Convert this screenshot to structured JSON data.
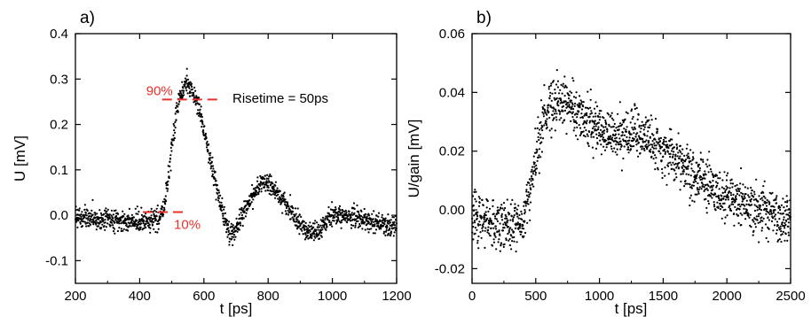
{
  "chart_data": [
    {
      "panel_label": "a)",
      "type": "scatter",
      "xlabel": "t [ps]",
      "ylabel": "U [mV]",
      "xlim": [
        200,
        1200
      ],
      "ylim": [
        -0.15,
        0.4
      ],
      "xticks": [
        200,
        400,
        600,
        800,
        1000,
        1200
      ],
      "yticks": [
        -0.1,
        0.0,
        0.1,
        0.2,
        0.3,
        0.4
      ],
      "xtick_labels": [
        "200",
        "400",
        "600",
        "800",
        "1000",
        "1200"
      ],
      "ytick_labels": [
        "-0.1",
        "0.0",
        "0.1",
        "0.2",
        "0.3",
        "0.4"
      ],
      "marker_color": "#000000",
      "trend": {
        "x": [
          200,
          300,
          400,
          460,
          480,
          500,
          520,
          540,
          560,
          580,
          600,
          620,
          640,
          660,
          680,
          700,
          720,
          740,
          760,
          780,
          800,
          820,
          840,
          860,
          880,
          900,
          920,
          940,
          960,
          980,
          1000,
          1050,
          1100,
          1150,
          1200
        ],
        "y": [
          -0.005,
          -0.01,
          -0.015,
          -0.01,
          0.03,
          0.15,
          0.25,
          0.29,
          0.285,
          0.25,
          0.19,
          0.12,
          0.06,
          0.0,
          -0.04,
          -0.03,
          0.0,
          0.03,
          0.055,
          0.07,
          0.07,
          0.06,
          0.04,
          0.02,
          0.0,
          -0.02,
          -0.035,
          -0.04,
          -0.035,
          -0.015,
          0.0,
          0.0,
          -0.01,
          -0.02,
          -0.025
        ]
      },
      "reference_lines": [
        {
          "label": "90%",
          "y": 0.255,
          "x_range": [
            470,
            645
          ],
          "color": "#e8312a"
        },
        {
          "label": "10%",
          "y": 0.007,
          "x_range": [
            410,
            545
          ],
          "color": "#e8312a"
        }
      ],
      "annotations": [
        "Risetime = 50ps"
      ]
    },
    {
      "panel_label": "b)",
      "type": "scatter",
      "xlabel": "t [ps]",
      "ylabel": "U/gain [mV]",
      "xlim": [
        0,
        2500
      ],
      "ylim": [
        -0.025,
        0.06
      ],
      "xticks": [
        0,
        500,
        1000,
        1500,
        2000,
        2500
      ],
      "yticks": [
        -0.02,
        0.0,
        0.02,
        0.04,
        0.06
      ],
      "xtick_labels": [
        "0",
        "500",
        "1000",
        "1500",
        "2000",
        "2500"
      ],
      "ytick_labels": [
        "-0.02",
        "0.00",
        "0.02",
        "0.04",
        "0.06"
      ],
      "marker_color": "#000000",
      "trend": {
        "x": [
          0,
          100,
          200,
          300,
          400,
          450,
          500,
          550,
          600,
          650,
          700,
          750,
          800,
          900,
          1000,
          1100,
          1200,
          1300,
          1400,
          1500,
          1600,
          1700,
          1800,
          1900,
          2000,
          2100,
          2200,
          2300,
          2400,
          2500
        ],
        "y": [
          -0.002,
          -0.004,
          -0.005,
          -0.006,
          -0.004,
          0.005,
          0.018,
          0.03,
          0.035,
          0.037,
          0.038,
          0.036,
          0.033,
          0.03,
          0.028,
          0.026,
          0.025,
          0.025,
          0.023,
          0.02,
          0.017,
          0.013,
          0.01,
          0.007,
          0.004,
          0.002,
          0.001,
          0.0,
          -0.002,
          -0.003
        ]
      }
    }
  ]
}
